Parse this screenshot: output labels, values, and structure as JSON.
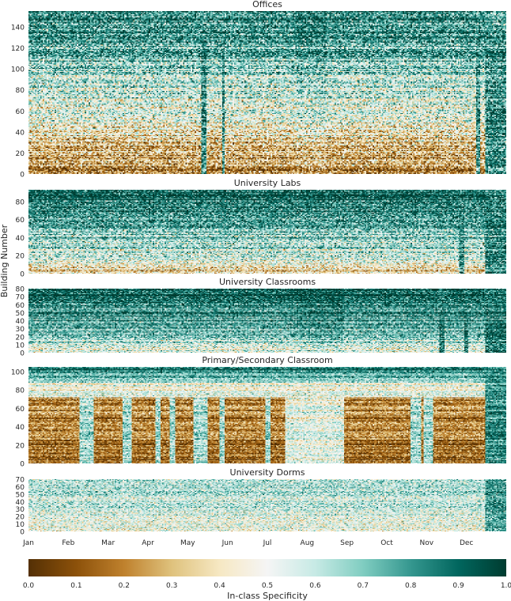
{
  "chart_data": {
    "type": "heatmap",
    "ylabel": "Building Number",
    "xlabel": "",
    "x_tick_labels": [
      "Jan",
      "Feb",
      "Mar",
      "Apr",
      "May",
      "Jun",
      "Jul",
      "Aug",
      "Sep",
      "Oct",
      "Nov",
      "Dec"
    ],
    "colorbar": {
      "label": "In-class Specificity",
      "range": [
        0.0,
        1.0
      ],
      "ticks": [
        "0.0",
        "0.1",
        "0.2",
        "0.3",
        "0.4",
        "0.5",
        "0.6",
        "0.7",
        "0.8",
        "0.9",
        "1.0"
      ],
      "colormap": "BrBG",
      "stops": [
        "#543005",
        "#8c510a",
        "#bf812d",
        "#dfc27d",
        "#f6e8c3",
        "#f5f5f5",
        "#c7eae5",
        "#80cdc1",
        "#35978f",
        "#01665e",
        "#003c30"
      ]
    },
    "panels": [
      {
        "title": "Offices",
        "ymax": 155,
        "yticks": [
          0,
          20,
          40,
          60,
          80,
          100,
          120,
          140
        ],
        "pattern": "offices"
      },
      {
        "title": "University Labs",
        "ymax": 93,
        "yticks": [
          0,
          20,
          40,
          60,
          80
        ],
        "pattern": "labs"
      },
      {
        "title": "University Classrooms",
        "ymax": 80,
        "yticks": [
          0,
          10,
          20,
          30,
          40,
          50,
          60,
          70,
          80
        ],
        "pattern": "classrooms"
      },
      {
        "title": "Primary/Secondary Classroom",
        "ymax": 105,
        "yticks": [
          0,
          20,
          40,
          60,
          80,
          100
        ],
        "pattern": "primary"
      },
      {
        "title": "University Dorms",
        "ymax": 70,
        "yticks": [
          0,
          10,
          20,
          30,
          40,
          50,
          60,
          70
        ],
        "pattern": "dorms"
      }
    ]
  }
}
